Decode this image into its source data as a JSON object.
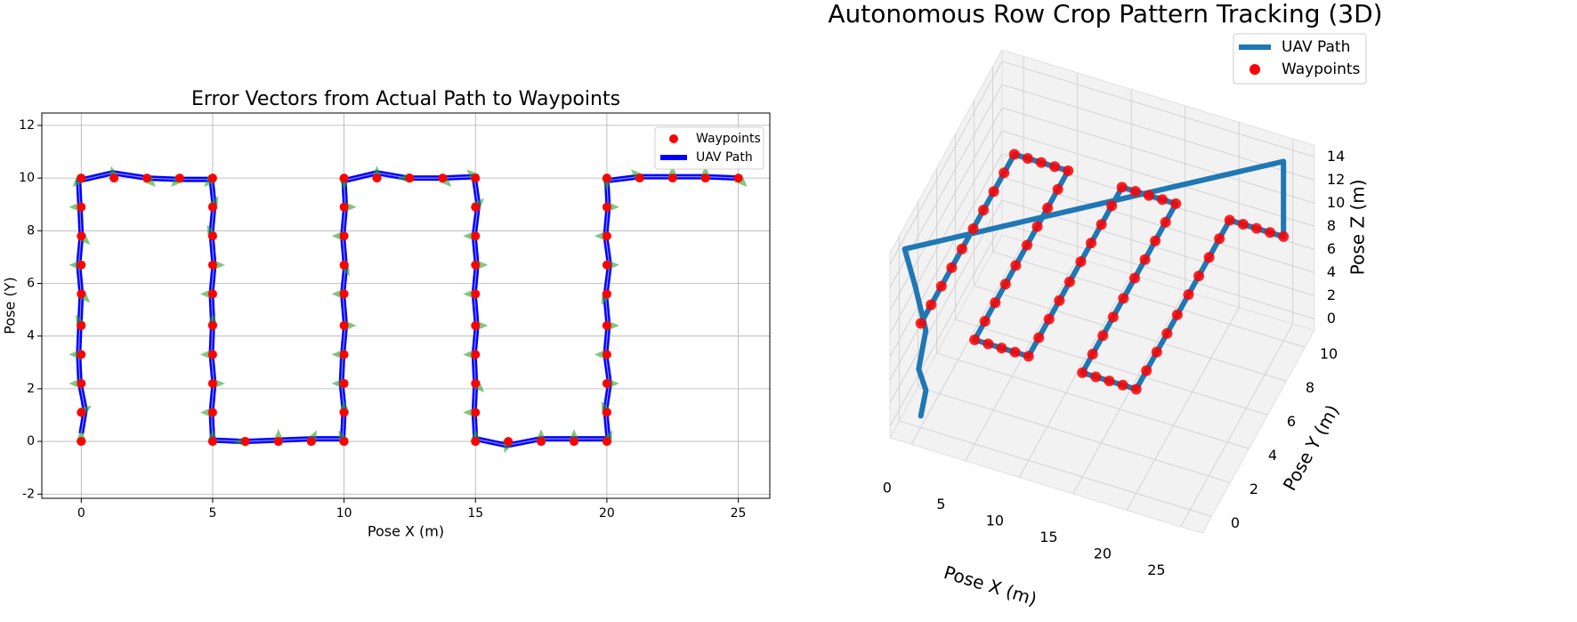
{
  "chart_data": [
    {
      "type": "line",
      "title": "Error Vectors from Actual Path to Waypoints",
      "x_label": "Pose X (m)",
      "y_label": "Pose (Y)",
      "xlim": [
        -1.5,
        26.2
      ],
      "ylim": [
        -2.16,
        12.47
      ],
      "xticks": [
        0,
        5,
        10,
        15,
        20,
        25
      ],
      "yticks": [
        -2,
        0,
        2,
        4,
        6,
        8,
        10,
        12
      ],
      "grid": true,
      "legend": "upper right",
      "vector_color": "#2ca02c",
      "series": [
        {
          "name": "Waypoints",
          "type": "scatter",
          "color": "#ff0000",
          "x": [
            0,
            0,
            0,
            0,
            0,
            0,
            0,
            0,
            0,
            0,
            1.25,
            2.5,
            3.75,
            5,
            5,
            5,
            5,
            5,
            5,
            5,
            5,
            5,
            5,
            6.25,
            7.5,
            8.75,
            10,
            10,
            10,
            10,
            10,
            10,
            10,
            10,
            10,
            10,
            11.25,
            12.5,
            13.75,
            15,
            15,
            15,
            15,
            15,
            15,
            15,
            15,
            15,
            15,
            16.25,
            17.5,
            18.75,
            20,
            20,
            20,
            20,
            20,
            20,
            20,
            20,
            20,
            20,
            21.25,
            22.5,
            23.75,
            25
          ],
          "y": [
            0,
            1.1,
            2.2,
            3.3,
            4.4,
            5.6,
            6.7,
            7.8,
            8.9,
            10,
            10,
            10,
            10,
            10,
            8.9,
            7.8,
            6.7,
            5.6,
            4.4,
            3.3,
            2.2,
            1.1,
            0,
            0,
            0,
            0,
            0,
            1.1,
            2.2,
            3.3,
            4.4,
            5.6,
            6.7,
            7.8,
            8.9,
            10,
            10,
            10,
            10,
            10,
            8.9,
            7.8,
            6.7,
            5.6,
            4.4,
            3.3,
            2.2,
            1.1,
            0,
            0,
            0,
            0,
            0,
            1.1,
            2.2,
            3.3,
            4.4,
            5.6,
            6.7,
            7.8,
            8.9,
            10,
            10,
            10,
            10,
            10
          ]
        },
        {
          "name": "UAV Path",
          "type": "line",
          "color": "#0000ff",
          "x": [
            0,
            0.15,
            -0.05,
            -0.1,
            -0.05,
            0,
            -0.1,
            0,
            -0.05,
            -0.1,
            1.2,
            2.5,
            3.7,
            4.95,
            5.05,
            4.95,
            5.05,
            4.95,
            5.0,
            4.95,
            5.05,
            4.95,
            5.0,
            6.2,
            7.5,
            8.8,
            9.95,
            10.0,
            9.9,
            9.95,
            10.05,
            9.95,
            10.05,
            9.95,
            10.05,
            10.0,
            11.25,
            12.4,
            13.75,
            14.95,
            15.1,
            14.95,
            15.05,
            14.95,
            15.05,
            14.95,
            15.0,
            14.95,
            15.0,
            16.2,
            17.5,
            18.75,
            20.05,
            19.95,
            20.1,
            19.95,
            20.05,
            19.95,
            20.1,
            19.95,
            20.05,
            20.0,
            21.2,
            22.5,
            23.75,
            25
          ],
          "y": [
            0.3,
            1.2,
            2.2,
            3.3,
            4.5,
            5.6,
            6.7,
            7.8,
            8.9,
            9.9,
            10.2,
            10.0,
            9.95,
            9.95,
            9.0,
            7.9,
            6.7,
            5.6,
            4.5,
            3.3,
            2.2,
            1.1,
            0.05,
            0.0,
            0.05,
            0.1,
            0.1,
            1.2,
            2.2,
            3.3,
            4.4,
            5.6,
            6.6,
            7.8,
            8.9,
            9.9,
            10.2,
            10.0,
            10.0,
            10.05,
            9.0,
            7.8,
            6.7,
            5.6,
            4.4,
            3.3,
            2.2,
            1.1,
            0.1,
            -0.15,
            0.1,
            0.1,
            0.1,
            1.2,
            2.2,
            3.3,
            4.4,
            5.5,
            6.7,
            7.8,
            8.9,
            9.9,
            10.05,
            10.05,
            10.05,
            10.0
          ]
        }
      ]
    },
    {
      "type": "line3d",
      "title": "Autonomous Row Crop Pattern Tracking (3D)",
      "x_label": "Pose X (m)",
      "y_label": "Pose Y (m)",
      "z_label": "Pose Z (m)",
      "xlim": [
        -2,
        27
      ],
      "ylim": [
        -1,
        11
      ],
      "zlim": [
        -1,
        15
      ],
      "xticks": [
        0,
        5,
        10,
        15,
        20,
        25
      ],
      "yticks": [
        0,
        2,
        4,
        6,
        8,
        10
      ],
      "zticks": [
        0,
        2,
        4,
        6,
        8,
        10,
        12,
        14
      ],
      "grid": true,
      "legend": "upper right",
      "series": [
        {
          "name": "UAV Path",
          "type": "line",
          "color": "#1f77b4",
          "x": [
            0,
            0.3,
            -0.2,
            0.2,
            -0.5,
            -1.5,
            25,
            25,
            20,
            20,
            15,
            15,
            10,
            10,
            5,
            5,
            0,
            0
          ],
          "y": [
            0,
            0.2,
            0,
            0.3,
            0,
            0,
            10,
            10,
            10,
            0,
            0,
            10,
            10,
            0,
            0,
            10,
            10,
            0
          ],
          "z": [
            0,
            2,
            4,
            7,
            11,
            14,
            14.5,
            8,
            8,
            8,
            8,
            8,
            8,
            8,
            8,
            8,
            8,
            8
          ]
        },
        {
          "name": "Waypoints",
          "type": "scatter",
          "color": "#ff0000",
          "x": [
            0,
            0,
            0,
            0,
            0,
            0,
            0,
            0,
            0,
            0,
            1.25,
            2.5,
            3.75,
            5,
            5,
            5,
            5,
            5,
            5,
            5,
            5,
            5,
            5,
            6.25,
            7.5,
            8.75,
            10,
            10,
            10,
            10,
            10,
            10,
            10,
            10,
            10,
            10,
            11.25,
            12.5,
            13.75,
            15,
            15,
            15,
            15,
            15,
            15,
            15,
            15,
            15,
            15,
            16.25,
            17.5,
            18.75,
            20,
            20,
            20,
            20,
            20,
            20,
            20,
            20,
            20,
            20,
            21.25,
            22.5,
            23.75,
            25
          ],
          "y": [
            0,
            1.1,
            2.2,
            3.3,
            4.4,
            5.6,
            6.7,
            7.8,
            8.9,
            10,
            10,
            10,
            10,
            10,
            8.9,
            7.8,
            6.7,
            5.6,
            4.4,
            3.3,
            2.2,
            1.1,
            0,
            0,
            0,
            0,
            0,
            1.1,
            2.2,
            3.3,
            4.4,
            5.6,
            6.7,
            7.8,
            8.9,
            10,
            10,
            10,
            10,
            10,
            8.9,
            7.8,
            6.7,
            5.6,
            4.4,
            3.3,
            2.2,
            1.1,
            0,
            0,
            0,
            0,
            0,
            1.1,
            2.2,
            3.3,
            4.4,
            5.6,
            6.7,
            7.8,
            8.9,
            10,
            10,
            10,
            10,
            10
          ],
          "z": [
            8,
            8,
            8,
            8,
            8,
            8,
            8,
            8,
            8,
            8,
            8,
            8,
            8,
            8,
            8,
            8,
            8,
            8,
            8,
            8,
            8,
            8,
            8,
            8,
            8,
            8,
            8,
            8,
            8,
            8,
            8,
            8,
            8,
            8,
            8,
            8,
            8,
            8,
            8,
            8,
            8,
            8,
            8,
            8,
            8,
            8,
            8,
            8,
            8,
            8,
            8,
            8,
            8,
            8,
            8,
            8,
            8,
            8,
            8,
            8,
            8,
            8,
            8,
            8,
            8,
            8
          ]
        }
      ]
    }
  ]
}
